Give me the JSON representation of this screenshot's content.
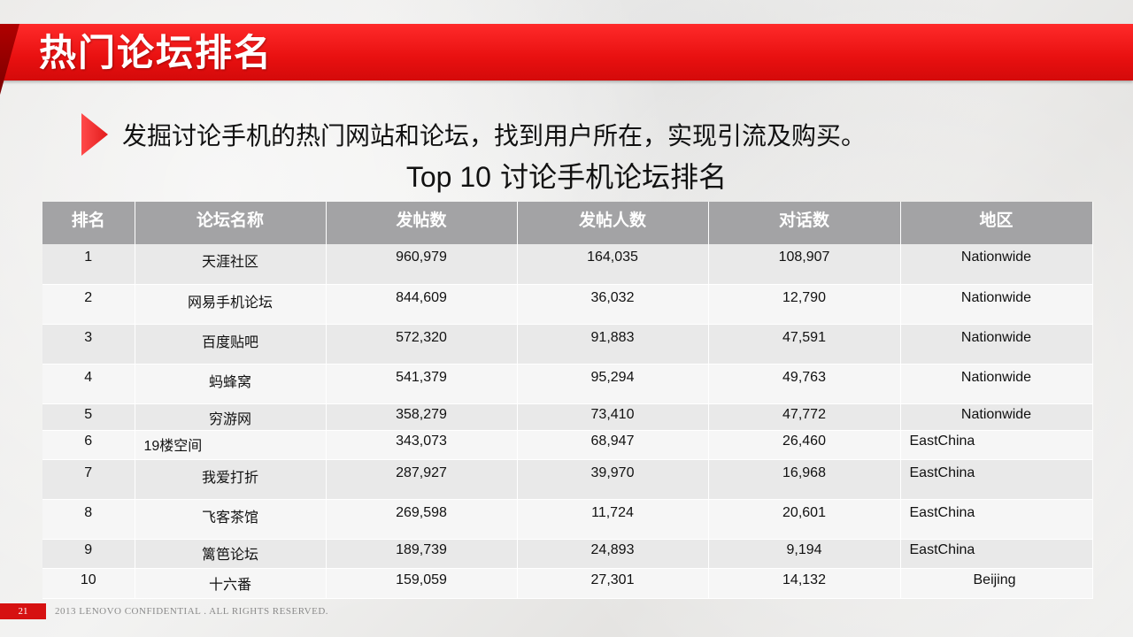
{
  "slide": {
    "title": "热门论坛排名",
    "subtitle": "发掘讨论手机的热门网站和论坛，找到用户所在，实现引流及购买。",
    "table_title_prefix": "Top 10",
    "table_title_suffix": " 讨论手机论坛排名"
  },
  "table": {
    "headers": [
      "排名",
      "论坛名称",
      "发帖数",
      "发帖人数",
      "对话数",
      "地区"
    ],
    "rows": [
      {
        "rank": "1",
        "name": "天涯社区",
        "posts": "960,979",
        "posters": "164,035",
        "conversations": "108,907",
        "region": "Nationwide"
      },
      {
        "rank": "2",
        "name": "网易手机论坛",
        "posts": "844,609",
        "posters": "36,032",
        "conversations": "12,790",
        "region": "Nationwide"
      },
      {
        "rank": "3",
        "name": "百度贴吧",
        "posts": "572,320",
        "posters": "91,883",
        "conversations": "47,591",
        "region": "Nationwide"
      },
      {
        "rank": "4",
        "name": "蚂蜂窝",
        "posts": "541,379",
        "posters": "95,294",
        "conversations": "49,763",
        "region": "Nationwide"
      },
      {
        "rank": "5",
        "name": "穷游网",
        "posts": "358,279",
        "posters": "73,410",
        "conversations": "47,772",
        "region": "Nationwide"
      },
      {
        "rank": "6",
        "name": "19楼空间",
        "posts": "343,073",
        "posters": "68,947",
        "conversations": "26,460",
        "region": "EastChina"
      },
      {
        "rank": "7",
        "name": "我爱打折",
        "posts": "287,927",
        "posters": "39,970",
        "conversations": "16,968",
        "region": "EastChina"
      },
      {
        "rank": "8",
        "name": "飞客茶馆",
        "posts": "269,598",
        "posters": "11,724",
        "conversations": "20,601",
        "region": "EastChina"
      },
      {
        "rank": "9",
        "name": "篱笆论坛",
        "posts": "189,739",
        "posters": "24,893",
        "conversations": "9,194",
        "region": "EastChina"
      },
      {
        "rank": "10",
        "name": "十六番",
        "posts": "159,059",
        "posters": "27,301",
        "conversations": "14,132",
        "region": "Beijing"
      }
    ]
  },
  "footer": {
    "page_number": "21",
    "text": "2013 LENOVO  CONFIDENTIAL . ALL RIGHTS  RESERVED."
  },
  "colors": {
    "title_bar": "#e81010",
    "header_bg": "#a3a3a5",
    "row_odd": "#e9e9e9",
    "row_even": "#f6f6f6"
  },
  "icons": {
    "bullet": "red-triangle-arrow-icon"
  }
}
